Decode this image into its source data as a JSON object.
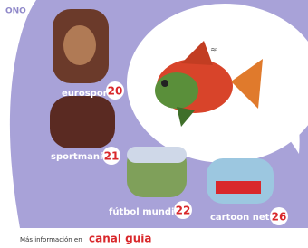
{
  "logo": "ONO",
  "channels": [
    {
      "name": "eurosport",
      "number": "20"
    },
    {
      "name": "sportmanía",
      "number": "21"
    },
    {
      "name": "fútbol mundial",
      "number": "22"
    },
    {
      "name": "cartoon net.",
      "number": "26"
    }
  ],
  "footer": {
    "text": "Más información en",
    "brand": "canal guia"
  }
}
